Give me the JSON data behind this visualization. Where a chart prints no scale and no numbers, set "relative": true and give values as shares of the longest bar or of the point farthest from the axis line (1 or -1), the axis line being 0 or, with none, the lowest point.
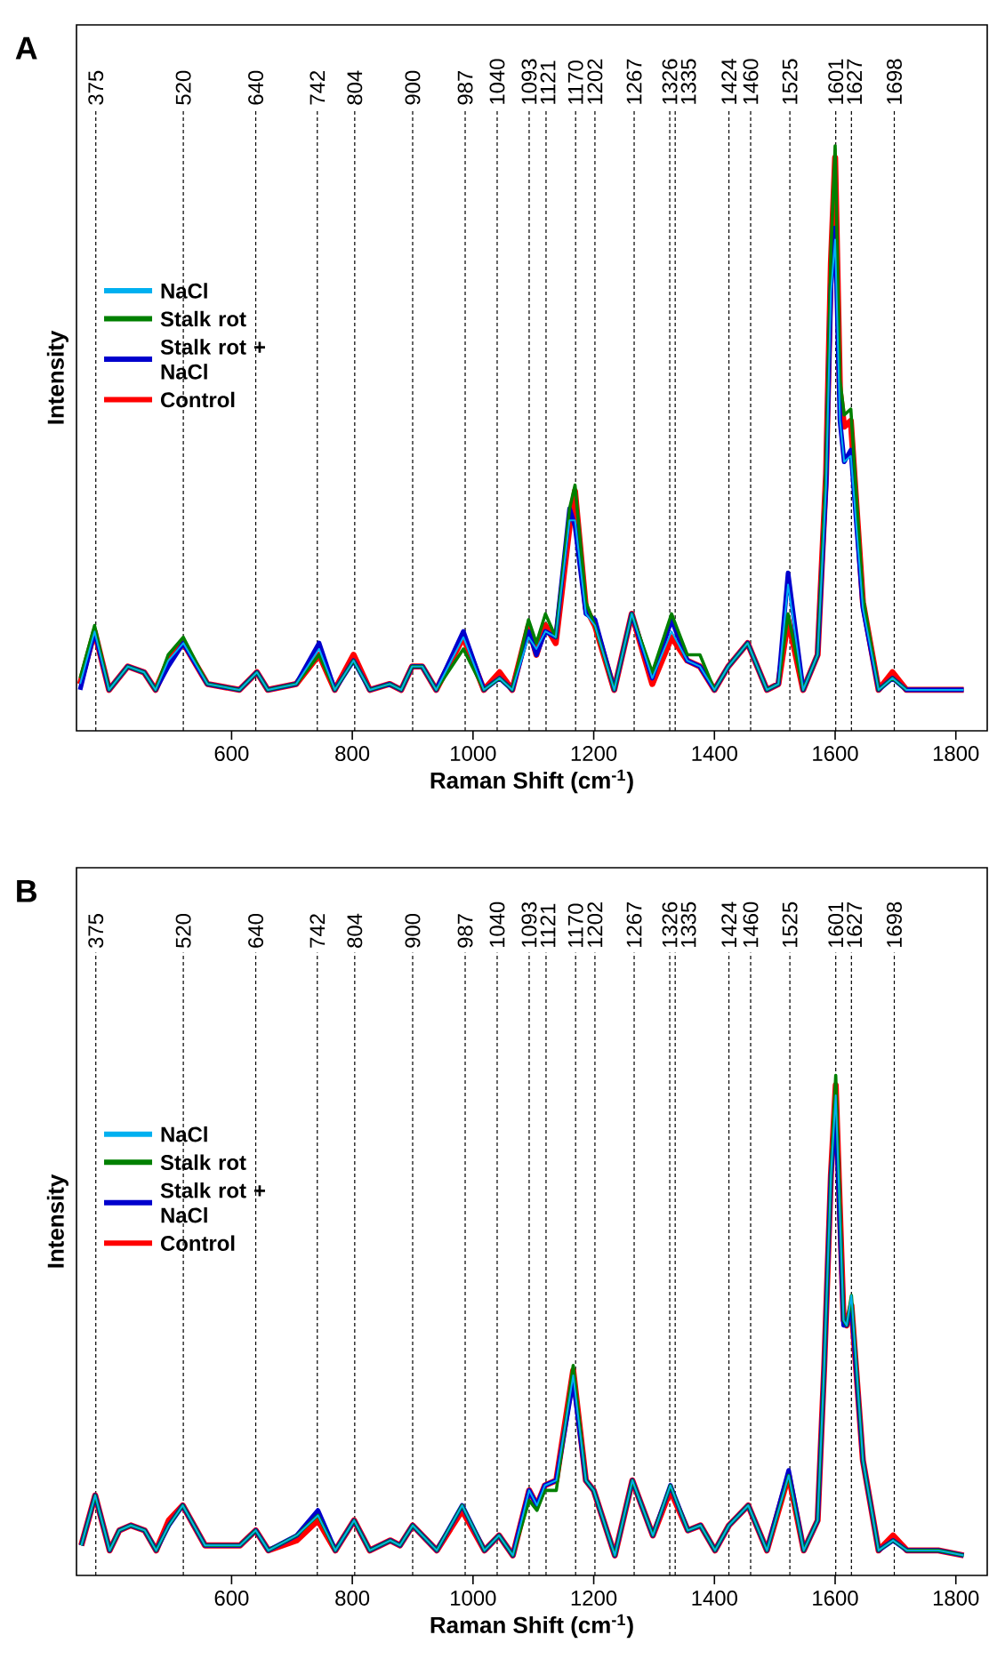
{
  "chart_data": [
    {
      "type": "line",
      "title": "A",
      "xlabel": "Raman Shift (cm$^{-1}$)",
      "ylabel": "Intensity",
      "relative": true,
      "tick_labels": "x",
      "legend": "left",
      "xlim": [
        343,
        1852
      ],
      "xticks": [
        600,
        800,
        1000,
        1200,
        1400,
        1600,
        1800
      ],
      "x": [
        349,
        373,
        397,
        428,
        455,
        474,
        495,
        520,
        560,
        613,
        642,
        660,
        707,
        745,
        771,
        802,
        829,
        862,
        881,
        899,
        916,
        939,
        984,
        1018,
        1044,
        1065,
        1092,
        1105,
        1120,
        1137,
        1160,
        1169,
        1187,
        1202,
        1234,
        1263,
        1297,
        1329,
        1355,
        1376,
        1400,
        1423,
        1455,
        1487,
        1506,
        1522,
        1547,
        1571,
        1585,
        1593,
        1600,
        1608,
        1615,
        1626,
        1646,
        1672,
        1695,
        1718,
        1769,
        1813
      ],
      "series": [
        {
          "name": "NaCl",
          "color": "#00b0f0",
          "values": [
            0.08,
            0.17,
            0.07,
            0.11,
            0.1,
            0.07,
            0.12,
            0.15,
            0.08,
            0.07,
            0.1,
            0.07,
            0.08,
            0.14,
            0.07,
            0.12,
            0.07,
            0.08,
            0.07,
            0.11,
            0.11,
            0.07,
            0.16,
            0.07,
            0.09,
            0.07,
            0.16,
            0.14,
            0.17,
            0.16,
            0.36,
            0.36,
            0.2,
            0.18,
            0.07,
            0.2,
            0.09,
            0.17,
            0.12,
            0.11,
            0.07,
            0.11,
            0.15,
            0.07,
            0.08,
            0.25,
            0.07,
            0.13,
            0.42,
            0.75,
            0.84,
            0.53,
            0.46,
            0.47,
            0.21,
            0.07,
            0.09,
            0.07,
            0.07,
            0.07
          ]
        },
        {
          "name": "Stalk rot",
          "color": "#008000",
          "values": [
            0.09,
            0.18,
            0.07,
            0.11,
            0.1,
            0.07,
            0.13,
            0.16,
            0.08,
            0.07,
            0.1,
            0.07,
            0.08,
            0.13,
            0.07,
            0.12,
            0.07,
            0.08,
            0.07,
            0.11,
            0.11,
            0.07,
            0.14,
            0.07,
            0.09,
            0.07,
            0.19,
            0.15,
            0.2,
            0.16,
            0.38,
            0.42,
            0.22,
            0.18,
            0.07,
            0.2,
            0.1,
            0.2,
            0.13,
            0.13,
            0.07,
            0.11,
            0.15,
            0.07,
            0.08,
            0.2,
            0.07,
            0.13,
            0.45,
            0.82,
            1.0,
            0.6,
            0.54,
            0.55,
            0.23,
            0.07,
            0.09,
            0.07,
            null,
            null
          ]
        },
        {
          "name": "Stalk rot + NaCl",
          "color": "#0000cd",
          "values": [
            0.07,
            0.17,
            0.07,
            0.11,
            0.1,
            0.07,
            0.11,
            0.15,
            0.08,
            0.07,
            0.1,
            0.07,
            0.08,
            0.15,
            0.07,
            0.12,
            0.07,
            0.08,
            0.07,
            0.11,
            0.11,
            0.07,
            0.17,
            0.07,
            0.09,
            0.07,
            0.17,
            0.13,
            0.17,
            0.16,
            0.38,
            0.35,
            0.2,
            0.19,
            0.07,
            0.2,
            0.09,
            0.19,
            0.12,
            0.11,
            0.07,
            0.11,
            0.15,
            0.07,
            0.08,
            0.27,
            0.07,
            0.13,
            0.42,
            0.76,
            0.86,
            0.53,
            0.46,
            0.48,
            0.21,
            0.07,
            0.09,
            0.07,
            0.07,
            0.07
          ]
        },
        {
          "name": "Control",
          "color": "#ff0000",
          "values": [
            0.08,
            0.17,
            0.07,
            0.11,
            0.1,
            0.07,
            0.12,
            0.15,
            0.08,
            0.07,
            0.1,
            0.07,
            0.08,
            0.13,
            0.07,
            0.13,
            0.07,
            0.08,
            0.07,
            0.11,
            0.11,
            0.07,
            0.16,
            0.07,
            0.1,
            0.07,
            0.18,
            0.13,
            0.18,
            0.15,
            0.35,
            0.41,
            0.21,
            0.18,
            0.07,
            0.2,
            0.08,
            0.16,
            0.12,
            0.11,
            0.07,
            0.11,
            0.15,
            0.07,
            0.08,
            0.19,
            0.07,
            0.13,
            0.44,
            0.8,
            0.98,
            0.58,
            0.52,
            0.53,
            0.22,
            0.07,
            0.1,
            0.07,
            0.07,
            0.07
          ]
        }
      ],
      "ref_lines": [
        {
          "axis": "x",
          "value": 375,
          "label": "375",
          "color": "#000000",
          "line_style": "dashed"
        },
        {
          "axis": "x",
          "value": 520,
          "label": "520",
          "color": "#000000",
          "line_style": "dashed"
        },
        {
          "axis": "x",
          "value": 640,
          "label": "640",
          "color": "#000000",
          "line_style": "dashed"
        },
        {
          "axis": "x",
          "value": 742,
          "label": "742",
          "color": "#000000",
          "line_style": "dashed"
        },
        {
          "axis": "x",
          "value": 804,
          "label": "804",
          "color": "#000000",
          "line_style": "dashed"
        },
        {
          "axis": "x",
          "value": 900,
          "label": "900",
          "color": "#000000",
          "line_style": "dashed"
        },
        {
          "axis": "x",
          "value": 987,
          "label": "987",
          "color": "#000000",
          "line_style": "dashed"
        },
        {
          "axis": "x",
          "value": 1040,
          "label": "1040",
          "color": "#000000",
          "line_style": "dashed"
        },
        {
          "axis": "x",
          "value": 1093,
          "label": "1093",
          "color": "#000000",
          "line_style": "dashed"
        },
        {
          "axis": "x",
          "value": 1121,
          "label": "1121",
          "color": "#000000",
          "line_style": "dashed"
        },
        {
          "axis": "x",
          "value": 1170,
          "label": "1170",
          "color": "#000000",
          "line_style": "dashed"
        },
        {
          "axis": "x",
          "value": 1202,
          "label": "1202",
          "color": "#000000",
          "line_style": "dashed"
        },
        {
          "axis": "x",
          "value": 1267,
          "label": "1267",
          "color": "#000000",
          "line_style": "dashed"
        },
        {
          "axis": "x",
          "value": 1326,
          "label": "1326",
          "color": "#000000",
          "line_style": "dashed"
        },
        {
          "axis": "x",
          "value": 1335,
          "label": "1335",
          "color": "#000000",
          "line_style": "dashed"
        },
        {
          "axis": "x",
          "value": 1424,
          "label": "1424",
          "color": "#000000",
          "line_style": "dashed"
        },
        {
          "axis": "x",
          "value": 1460,
          "label": "1460",
          "color": "#000000",
          "line_style": "dashed"
        },
        {
          "axis": "x",
          "value": 1525,
          "label": "1525",
          "color": "#000000",
          "line_style": "dashed"
        },
        {
          "axis": "x",
          "value": 1601,
          "label": "1601",
          "color": "#000000",
          "line_style": "dashed"
        },
        {
          "axis": "x",
          "value": 1627,
          "label": "1627",
          "color": "#000000",
          "line_style": "dashed"
        },
        {
          "axis": "x",
          "value": 1698,
          "label": "1698",
          "color": "#000000",
          "line_style": "dashed"
        }
      ]
    },
    {
      "type": "line",
      "title": "B",
      "xlabel": "Raman Shift (cm$^{-1}$)",
      "ylabel": "Intensity",
      "relative": true,
      "tick_labels": "x",
      "legend": "left",
      "xlim": [
        343,
        1852
      ],
      "xticks": [
        600,
        800,
        1000,
        1200,
        1400,
        1600,
        1800
      ],
      "x": [
        351,
        374,
        398,
        414,
        433,
        456,
        475,
        496,
        519,
        556,
        614,
        640,
        661,
        708,
        743,
        772,
        803,
        829,
        863,
        879,
        900,
        940,
        982,
        1019,
        1043,
        1066,
        1093,
        1106,
        1119,
        1138,
        1166,
        1187,
        1200,
        1235,
        1264,
        1298,
        1327,
        1356,
        1377,
        1401,
        1424,
        1456,
        1487,
        1523,
        1548,
        1571,
        1582,
        1593,
        1601,
        1614,
        1619,
        1627,
        1646,
        1672,
        1696,
        1719,
        1771,
        1813
      ],
      "series": [
        {
          "name": "NaCl",
          "color": "#00b0f0",
          "values": [
            0.06,
            0.16,
            0.05,
            0.09,
            0.1,
            0.09,
            0.05,
            0.1,
            0.14,
            0.06,
            0.06,
            0.09,
            0.05,
            0.08,
            0.12,
            0.05,
            0.11,
            0.05,
            0.07,
            0.06,
            0.1,
            0.05,
            0.14,
            0.05,
            0.08,
            0.04,
            0.17,
            0.14,
            0.18,
            0.19,
            0.4,
            0.19,
            0.17,
            0.04,
            0.19,
            0.08,
            0.18,
            0.09,
            0.1,
            0.05,
            0.1,
            0.14,
            0.05,
            0.2,
            0.05,
            0.11,
            0.42,
            0.8,
            0.96,
            0.51,
            0.5,
            0.56,
            0.23,
            0.05,
            0.07,
            0.05,
            0.05,
            0.04
          ]
        },
        {
          "name": "Stalk rot",
          "color": "#008000",
          "values": [
            0.06,
            0.16,
            0.05,
            0.09,
            0.1,
            0.09,
            0.05,
            0.1,
            0.14,
            0.06,
            0.06,
            0.09,
            0.05,
            0.08,
            0.12,
            0.05,
            0.11,
            0.05,
            0.07,
            0.06,
            0.1,
            0.05,
            0.14,
            0.05,
            0.08,
            0.04,
            0.15,
            0.13,
            0.17,
            0.17,
            0.42,
            0.19,
            0.17,
            0.04,
            0.19,
            0.08,
            0.18,
            0.09,
            0.1,
            0.05,
            0.1,
            0.14,
            0.05,
            0.2,
            0.05,
            0.11,
            0.42,
            0.8,
            1.0,
            0.51,
            0.5,
            0.56,
            0.23,
            0.05,
            0.07,
            0.05,
            0.05,
            0.04
          ]
        },
        {
          "name": "Stalk rot + NaCl",
          "color": "#0000cd",
          "values": [
            0.06,
            0.16,
            0.05,
            0.09,
            0.1,
            0.09,
            0.05,
            0.1,
            0.14,
            0.06,
            0.06,
            0.09,
            0.05,
            0.08,
            0.13,
            0.05,
            0.11,
            0.05,
            0.07,
            0.06,
            0.1,
            0.05,
            0.14,
            0.05,
            0.08,
            0.04,
            0.17,
            0.14,
            0.18,
            0.19,
            0.39,
            0.19,
            0.17,
            0.04,
            0.19,
            0.08,
            0.18,
            0.09,
            0.1,
            0.05,
            0.1,
            0.14,
            0.05,
            0.21,
            0.05,
            0.11,
            0.42,
            0.8,
            0.93,
            0.5,
            0.5,
            0.54,
            0.23,
            0.05,
            0.07,
            0.05,
            0.05,
            0.04
          ]
        },
        {
          "name": "Control",
          "color": "#ff0000",
          "values": [
            0.06,
            0.16,
            0.05,
            0.09,
            0.1,
            0.09,
            0.05,
            0.11,
            0.14,
            0.06,
            0.06,
            0.09,
            0.05,
            0.07,
            0.11,
            0.05,
            0.11,
            0.05,
            0.07,
            0.06,
            0.1,
            0.05,
            0.13,
            0.05,
            0.08,
            0.04,
            0.17,
            0.14,
            0.18,
            0.19,
            0.41,
            0.19,
            0.17,
            0.04,
            0.19,
            0.08,
            0.17,
            0.09,
            0.1,
            0.05,
            0.1,
            0.14,
            0.05,
            0.2,
            0.05,
            0.11,
            0.42,
            0.8,
            0.98,
            0.51,
            0.5,
            0.54,
            0.23,
            0.05,
            0.08,
            0.05,
            0.05,
            0.04
          ]
        }
      ],
      "ref_lines": [
        {
          "axis": "x",
          "value": 375,
          "label": "375",
          "color": "#000000",
          "line_style": "dashed"
        },
        {
          "axis": "x",
          "value": 520,
          "label": "520",
          "color": "#000000",
          "line_style": "dashed"
        },
        {
          "axis": "x",
          "value": 640,
          "label": "640",
          "color": "#000000",
          "line_style": "dashed"
        },
        {
          "axis": "x",
          "value": 742,
          "label": "742",
          "color": "#000000",
          "line_style": "dashed"
        },
        {
          "axis": "x",
          "value": 804,
          "label": "804",
          "color": "#000000",
          "line_style": "dashed"
        },
        {
          "axis": "x",
          "value": 900,
          "label": "900",
          "color": "#000000",
          "line_style": "dashed"
        },
        {
          "axis": "x",
          "value": 987,
          "label": "987",
          "color": "#000000",
          "line_style": "dashed"
        },
        {
          "axis": "x",
          "value": 1040,
          "label": "1040",
          "color": "#000000",
          "line_style": "dashed"
        },
        {
          "axis": "x",
          "value": 1093,
          "label": "1093",
          "color": "#000000",
          "line_style": "dashed"
        },
        {
          "axis": "x",
          "value": 1121,
          "label": "1121",
          "color": "#000000",
          "line_style": "dashed"
        },
        {
          "axis": "x",
          "value": 1170,
          "label": "1170",
          "color": "#000000",
          "line_style": "dashed"
        },
        {
          "axis": "x",
          "value": 1202,
          "label": "1202",
          "color": "#000000",
          "line_style": "dashed"
        },
        {
          "axis": "x",
          "value": 1267,
          "label": "1267",
          "color": "#000000",
          "line_style": "dashed"
        },
        {
          "axis": "x",
          "value": 1326,
          "label": "1326",
          "color": "#000000",
          "line_style": "dashed"
        },
        {
          "axis": "x",
          "value": 1335,
          "label": "1335",
          "color": "#000000",
          "line_style": "dashed"
        },
        {
          "axis": "x",
          "value": 1424,
          "label": "1424",
          "color": "#000000",
          "line_style": "dashed"
        },
        {
          "axis": "x",
          "value": 1460,
          "label": "1460",
          "color": "#000000",
          "line_style": "dashed"
        },
        {
          "axis": "x",
          "value": 1525,
          "label": "1525",
          "color": "#000000",
          "line_style": "dashed"
        },
        {
          "axis": "x",
          "value": 1601,
          "label": "1601",
          "color": "#000000",
          "line_style": "dashed"
        },
        {
          "axis": "x",
          "value": 1627,
          "label": "1627",
          "color": "#000000",
          "line_style": "dashed"
        },
        {
          "axis": "x",
          "value": 1698,
          "label": "1698",
          "color": "#000000",
          "line_style": "dashed"
        }
      ]
    }
  ]
}
